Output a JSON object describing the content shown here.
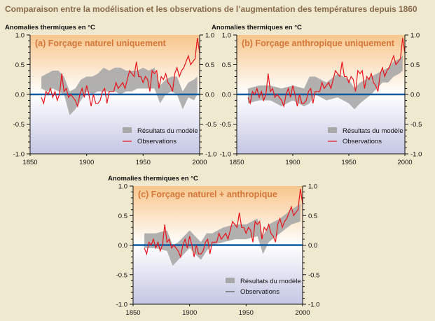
{
  "title": "Comparaison entre la modélisation et les observations de l’augmentation des températures depuis 1860",
  "colors": {
    "observations": "#e8141c",
    "model": "#a8a8a8",
    "zero_line": "#0a5aa0",
    "panel_title": "#d4773a",
    "bg_top": "#f8c68c",
    "bg_bottom": "#c4c6e4"
  },
  "chart_data": [
    {
      "type": "area",
      "panel_title": "(a) Forçage naturel uniquement",
      "ylabel": "Anomalies thermiques en °C",
      "xlim": [
        1850,
        2000
      ],
      "ylim": [
        -1.0,
        1.0
      ],
      "xticks": [
        "1850",
        "1900",
        "1950",
        "2000"
      ],
      "yticks": [
        "-1.0",
        "-0.5",
        "0.0",
        "0.5",
        "1.0"
      ],
      "legend": [
        "Résultats du modèle",
        "Observations"
      ],
      "legend_position": "bottom-right",
      "model_band": {
        "x": [
          1860,
          1865,
          1870,
          1875,
          1880,
          1885,
          1890,
          1895,
          1900,
          1905,
          1910,
          1915,
          1920,
          1925,
          1930,
          1935,
          1940,
          1945,
          1950,
          1955,
          1960,
          1965,
          1970,
          1975,
          1980,
          1985,
          1990,
          1995,
          1998
        ],
        "lower": [
          0.1,
          0.05,
          0.1,
          0.05,
          0.0,
          -0.35,
          -0.25,
          -0.1,
          0.05,
          0.0,
          0.05,
          0.05,
          0.05,
          0.05,
          0.0,
          0.05,
          0.05,
          0.1,
          0.1,
          0.1,
          0.1,
          -0.15,
          0.0,
          0.05,
          0.0,
          -0.25,
          -0.05,
          -0.1,
          0.0
        ],
        "upper": [
          0.3,
          0.35,
          0.4,
          0.4,
          0.3,
          0.05,
          0.1,
          0.25,
          0.3,
          0.3,
          0.35,
          0.45,
          0.4,
          0.45,
          0.45,
          0.4,
          0.4,
          0.4,
          0.45,
          0.4,
          0.45,
          0.15,
          0.25,
          0.3,
          0.3,
          0.05,
          0.2,
          0.25,
          0.3
        ]
      }
    },
    {
      "type": "area",
      "panel_title": "(b) Forçage anthropique uniquement",
      "ylabel": "Anomalies thermiques en °C",
      "xlim": [
        1850,
        2000
      ],
      "ylim": [
        -1.0,
        1.0
      ],
      "xticks": [
        "1850",
        "1900",
        "1950",
        "2000"
      ],
      "yticks": [
        "-1.0",
        "-0.5",
        "0.0",
        "0.5",
        "1.0"
      ],
      "legend": [
        "Résultats du modèle",
        "Observations"
      ],
      "legend_position": "bottom-right",
      "model_band": {
        "x": [
          1860,
          1870,
          1880,
          1890,
          1900,
          1910,
          1915,
          1920,
          1930,
          1940,
          1950,
          1955,
          1960,
          1970,
          1975,
          1980,
          1985,
          1990,
          1995,
          1998
        ],
        "lower": [
          -0.15,
          -0.1,
          -0.1,
          -0.2,
          -0.1,
          -0.2,
          -0.15,
          0.0,
          -0.1,
          -0.05,
          -0.15,
          -0.25,
          -0.15,
          0.0,
          0.1,
          0.2,
          0.2,
          0.3,
          0.35,
          0.4
        ],
        "upper": [
          0.1,
          0.15,
          0.15,
          0.1,
          0.15,
          0.1,
          0.3,
          0.3,
          0.2,
          0.35,
          0.25,
          0.1,
          0.2,
          0.3,
          0.35,
          0.4,
          0.45,
          0.55,
          0.6,
          0.65
        ]
      }
    },
    {
      "type": "area",
      "panel_title": "(c) Forçage naturel + anthropique",
      "ylabel": "Anomalies thermiques en °C",
      "xlim": [
        1850,
        2000
      ],
      "ylim": [
        -1.0,
        1.0
      ],
      "xticks": [
        "1850",
        "1900",
        "1950",
        "2000"
      ],
      "yticks": [
        "-1.0",
        "-0.5",
        "0.0",
        "0.5",
        "1.0"
      ],
      "legend": [
        "Résultats du modèle",
        "Observations"
      ],
      "legend_position": "bottom-right",
      "model_band": {
        "x": [
          1860,
          1870,
          1880,
          1885,
          1890,
          1900,
          1910,
          1915,
          1920,
          1930,
          1940,
          1950,
          1960,
          1965,
          1970,
          1980,
          1990,
          1998
        ],
        "lower": [
          -0.05,
          -0.05,
          -0.1,
          -0.35,
          -0.25,
          -0.05,
          -0.25,
          -0.1,
          0.0,
          0.05,
          0.1,
          0.1,
          0.15,
          -0.15,
          0.05,
          0.2,
          0.35,
          0.4
        ],
        "upper": [
          0.2,
          0.2,
          0.25,
          0.0,
          0.05,
          0.25,
          0.05,
          0.2,
          0.2,
          0.3,
          0.35,
          0.35,
          0.45,
          0.15,
          0.35,
          0.45,
          0.6,
          0.7
        ]
      }
    }
  ],
  "observations": {
    "x": [
      1860,
      1862,
      1864,
      1866,
      1868,
      1870,
      1872,
      1874,
      1876,
      1878,
      1880,
      1882,
      1884,
      1886,
      1888,
      1890,
      1892,
      1894,
      1896,
      1898,
      1900,
      1902,
      1904,
      1906,
      1908,
      1910,
      1912,
      1914,
      1916,
      1918,
      1920,
      1922,
      1924,
      1926,
      1928,
      1930,
      1932,
      1934,
      1936,
      1938,
      1940,
      1942,
      1944,
      1946,
      1948,
      1950,
      1952,
      1954,
      1956,
      1958,
      1960,
      1962,
      1964,
      1966,
      1968,
      1970,
      1972,
      1974,
      1976,
      1978,
      1980,
      1982,
      1984,
      1986,
      1988,
      1990,
      1992,
      1994,
      1996,
      1998,
      2000
    ],
    "y": [
      -0.05,
      -0.15,
      0.05,
      0.0,
      0.1,
      -0.05,
      0.05,
      -0.1,
      0.0,
      0.35,
      0.05,
      0.1,
      -0.05,
      0.0,
      -0.05,
      -0.1,
      -0.2,
      0.0,
      0.1,
      -0.05,
      0.15,
      0.0,
      -0.2,
      0.0,
      -0.15,
      -0.15,
      -0.1,
      0.05,
      0.1,
      -0.15,
      0.05,
      0.05,
      0.05,
      0.2,
      0.1,
      0.15,
      0.2,
      0.1,
      0.25,
      0.4,
      0.35,
      0.3,
      0.55,
      0.3,
      0.3,
      0.2,
      0.3,
      0.25,
      0.05,
      0.4,
      0.35,
      0.4,
      0.1,
      0.3,
      0.25,
      0.35,
      0.2,
      0.15,
      0.05,
      0.35,
      0.45,
      0.3,
      0.4,
      0.45,
      0.55,
      0.65,
      0.5,
      0.55,
      0.6,
      0.95,
      0.7
    ]
  }
}
